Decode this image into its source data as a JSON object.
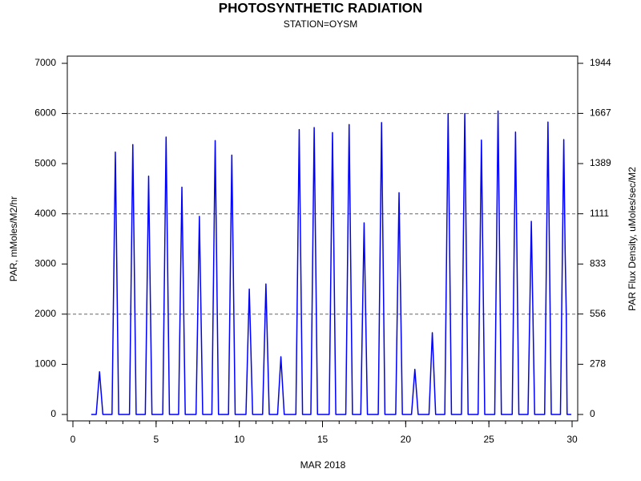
{
  "chart_data": {
    "type": "line",
    "title": "PHOTOSYNTHETIC RADIATION",
    "subtitle": "STATION=OYSM",
    "x_label": "MAR 2018",
    "y_label": "PAR, mMoles/M2/hr",
    "y2_label": "PAR Flux Density, uMoles/sec/M2",
    "color": "#0000ff",
    "x": [
      1.1,
      1.4,
      1.52,
      1.6,
      1.68,
      1.8,
      2.35,
      2.47,
      2.55,
      2.63,
      2.75,
      3.4,
      3.52,
      3.6,
      3.68,
      3.8,
      4.35,
      4.47,
      4.55,
      4.63,
      4.75,
      5.4,
      5.52,
      5.6,
      5.68,
      5.8,
      6.35,
      6.47,
      6.55,
      6.63,
      6.75,
      7.4,
      7.52,
      7.6,
      7.68,
      7.8,
      8.35,
      8.47,
      8.55,
      8.63,
      8.75,
      9.35,
      9.47,
      9.55,
      9.63,
      9.75,
      10.4,
      10.52,
      10.6,
      10.68,
      10.8,
      11.4,
      11.52,
      11.6,
      11.68,
      11.8,
      12.3,
      12.42,
      12.5,
      12.58,
      12.7,
      13.4,
      13.52,
      13.6,
      13.68,
      13.8,
      14.3,
      14.42,
      14.5,
      14.58,
      14.7,
      15.4,
      15.52,
      15.6,
      15.68,
      15.8,
      16.4,
      16.52,
      16.6,
      16.68,
      16.8,
      17.3,
      17.42,
      17.5,
      17.58,
      17.7,
      18.35,
      18.47,
      18.55,
      18.63,
      18.75,
      19.4,
      19.52,
      19.6,
      19.68,
      19.8,
      20.35,
      20.47,
      20.55,
      20.63,
      20.75,
      21.4,
      21.52,
      21.6,
      21.68,
      21.8,
      22.35,
      22.47,
      22.55,
      22.63,
      22.75,
      23.35,
      23.47,
      23.55,
      23.63,
      23.75,
      24.35,
      24.47,
      24.55,
      24.63,
      24.75,
      25.35,
      25.47,
      25.55,
      25.63,
      25.75,
      26.4,
      26.52,
      26.6,
      26.68,
      26.8,
      27.35,
      27.47,
      27.55,
      27.63,
      27.75,
      28.35,
      28.47,
      28.55,
      28.63,
      28.75,
      29.3,
      29.42,
      29.5,
      29.58,
      29.65,
      29.7,
      29.95
    ],
    "values": [
      0,
      0,
      510,
      850,
      510,
      0,
      0,
      3138,
      5230,
      3138,
      0,
      0,
      3228,
      5380,
      3228,
      0,
      0,
      2850,
      4750,
      2850,
      0,
      0,
      3318,
      5530,
      3318,
      0,
      0,
      2718,
      4530,
      2718,
      0,
      0,
      2370,
      3950,
      2370,
      0,
      0,
      3276,
      5460,
      3276,
      0,
      0,
      3102,
      5170,
      3102,
      0,
      0,
      1500,
      2500,
      1500,
      0,
      0,
      1560,
      2600,
      1560,
      0,
      0,
      690,
      1150,
      690,
      0,
      0,
      3408,
      5680,
      3408,
      0,
      0,
      3432,
      5720,
      3432,
      0,
      0,
      3372,
      5620,
      3372,
      0,
      0,
      3468,
      5780,
      3468,
      0,
      0,
      2292,
      3820,
      2292,
      0,
      0,
      3492,
      5820,
      3492,
      0,
      0,
      2652,
      4420,
      2652,
      0,
      0,
      540,
      900,
      540,
      0,
      0,
      978,
      1630,
      978,
      0,
      0,
      3600,
      6000,
      3600,
      0,
      0,
      3600,
      6000,
      3600,
      0,
      0,
      3282,
      5470,
      3282,
      0,
      0,
      3630,
      6050,
      3630,
      0,
      0,
      3378,
      5630,
      3378,
      0,
      0,
      2310,
      3850,
      2310,
      0,
      0,
      3498,
      5830,
      3498,
      0,
      0,
      3288,
      5480,
      3288,
      2000,
      0,
      0
    ],
    "xlim": [
      0,
      30
    ],
    "xticks": [
      0,
      5,
      10,
      15,
      20,
      25,
      30
    ],
    "ylim": [
      0,
      7000
    ],
    "yticks": [
      0,
      1000,
      2000,
      3000,
      4000,
      5000,
      6000,
      7000
    ],
    "y2lim": [
      0,
      1944
    ],
    "y2ticks": [
      0,
      278,
      556,
      833,
      1111,
      1389,
      1667,
      1944
    ],
    "grid_lines": [
      2000,
      4000,
      6000
    ]
  }
}
